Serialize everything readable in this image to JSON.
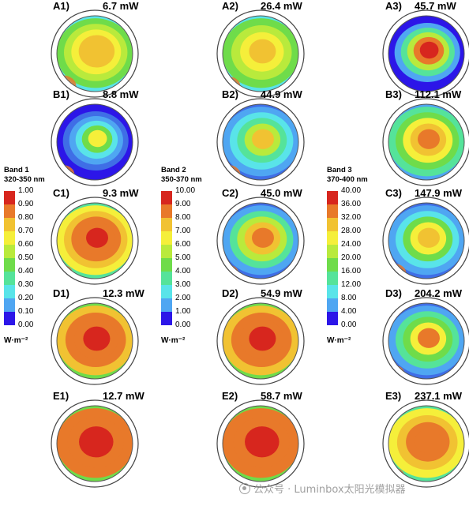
{
  "panels": [
    {
      "label": "A1)",
      "power": "6.7 mW",
      "band": 1,
      "levels": [
        0.55,
        0.62,
        0.75,
        0.8,
        0.85
      ],
      "hot": 0.3
    },
    {
      "label": "A2)",
      "power": "26.4 mW",
      "band": 2,
      "levels": [
        0.55,
        0.6,
        0.7,
        0.82
      ],
      "hot": 0.2
    },
    {
      "label": "A3)",
      "power": "45.7 mW",
      "band": 3,
      "levels": [
        0.05,
        0.2,
        0.4,
        0.62,
        0.88,
        0.96
      ],
      "hot": 0.0
    },
    {
      "label": "B1)",
      "power": "8.8 mW",
      "band": 1,
      "levels": [
        0.05,
        0.1,
        0.2,
        0.35,
        0.5,
        0.75
      ],
      "hot": 0.2
    },
    {
      "label": "B2)",
      "power": "44.9 mW",
      "band": 2,
      "levels": [
        0.2,
        0.3,
        0.45,
        0.6,
        0.8
      ],
      "hot": 0.2
    },
    {
      "label": "B3)",
      "power": "112.1 mW",
      "band": 3,
      "levels": [
        0.4,
        0.55,
        0.7,
        0.8,
        0.92
      ],
      "hot": 0.0
    },
    {
      "label": "C1)",
      "power": "9.3 mW",
      "band": 1,
      "levels": [
        0.72,
        0.82,
        0.88,
        0.93,
        0.97
      ],
      "hot": 0.1
    },
    {
      "label": "C2)",
      "power": "45.0 mW",
      "band": 2,
      "levels": [
        0.25,
        0.45,
        0.62,
        0.78,
        0.9
      ],
      "hot": 0.1
    },
    {
      "label": "C3)",
      "power": "147.9 mW",
      "band": 3,
      "levels": [
        0.2,
        0.35,
        0.52,
        0.7,
        0.85
      ],
      "hot": 0.2
    },
    {
      "label": "D1)",
      "power": "12.3 mW",
      "band": 1,
      "levels": [
        0.85,
        0.9,
        0.94,
        0.97
      ],
      "hot": 0.0
    },
    {
      "label": "D2)",
      "power": "54.9 mW",
      "band": 2,
      "levels": [
        0.82,
        0.88,
        0.93,
        0.97
      ],
      "hot": 0.0
    },
    {
      "label": "D3)",
      "power": "204.2 mW",
      "band": 3,
      "levels": [
        0.25,
        0.4,
        0.55,
        0.7,
        0.86
      ],
      "hot": 0.1
    },
    {
      "label": "E1)",
      "power": "12.7 mW",
      "band": 1,
      "levels": [
        0.9,
        0.94,
        0.97
      ],
      "hot": 0.0
    },
    {
      "label": "E2)",
      "power": "58.7 mW",
      "band": 2,
      "levels": [
        0.88,
        0.93,
        0.97
      ],
      "hot": 0.0
    },
    {
      "label": "E3)",
      "power": "237.1 mW",
      "band": 3,
      "levels": [
        0.7,
        0.8,
        0.88,
        0.94
      ],
      "hot": 0.1
    }
  ],
  "colorbars": [
    {
      "title_line1": "Band 1",
      "title_line2": "320-350 nm",
      "unit": "W·m⁻²",
      "ticks": [
        "1.00",
        "0.90",
        "0.80",
        "0.70",
        "0.60",
        "0.50",
        "0.40",
        "0.30",
        "0.20",
        "0.10",
        "0.00"
      ]
    },
    {
      "title_line1": "Band 2",
      "title_line2": "350-370 nm",
      "unit": "W·m⁻²",
      "ticks": [
        "10.00",
        "9.00",
        "8.00",
        "7.00",
        "6.00",
        "5.00",
        "4.00",
        "3.00",
        "2.00",
        "1.00",
        "0.00"
      ]
    },
    {
      "title_line1": "Band 3",
      "title_line2": "370-400 nm",
      "unit": "W·m⁻²",
      "ticks": [
        "40.00",
        "36.00",
        "32.00",
        "28.00",
        "24.00",
        "20.00",
        "16.00",
        "12.00",
        "8.00",
        "4.00",
        "0.00"
      ]
    }
  ],
  "colormap": [
    "#d7261e",
    "#e8792a",
    "#f1c232",
    "#f5ef3a",
    "#b9ea3c",
    "#6fdc4a",
    "#55e39a",
    "#59e4e9",
    "#4fa6f2",
    "#3f6ee6",
    "#2c16e8"
  ],
  "watermark": "公众号 · Luminbox太阳光模拟器"
}
